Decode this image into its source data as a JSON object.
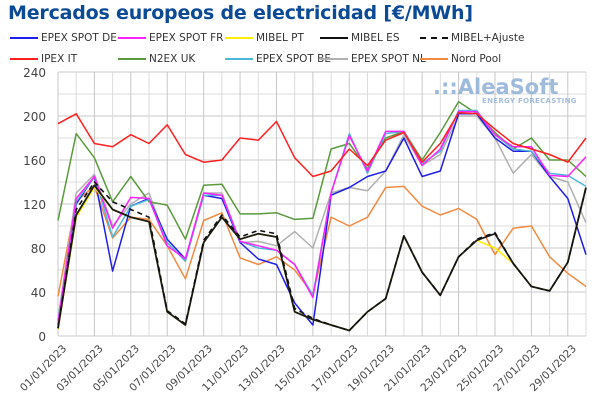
{
  "title": "Mercados europeos de electricidad [€/MWh]",
  "logo": {
    "name": "AleaSoft",
    "tagline": "ENERGY FORECASTING",
    "dots": ".::"
  },
  "chart_data": {
    "type": "line",
    "title": "Mercados europeos de electricidad [€/MWh]",
    "xlabel": "",
    "ylabel": "",
    "ylim": [
      0,
      240
    ],
    "yticks": [
      0,
      40,
      80,
      120,
      160,
      200,
      240
    ],
    "grid": true,
    "legend_position": "top",
    "x": [
      "01/01/2023",
      "02/01/2023",
      "03/01/2023",
      "04/01/2023",
      "05/01/2023",
      "06/01/2023",
      "07/01/2023",
      "08/01/2023",
      "09/01/2023",
      "10/01/2023",
      "11/01/2023",
      "12/01/2023",
      "13/01/2023",
      "14/01/2023",
      "15/01/2023",
      "16/01/2023",
      "17/01/2023",
      "18/01/2023",
      "19/01/2023",
      "20/01/2023",
      "21/01/2023",
      "22/01/2023",
      "23/01/2023",
      "24/01/2023",
      "25/01/2023",
      "26/01/2023",
      "27/01/2023",
      "28/01/2023",
      "29/01/2023",
      "30/01/2023"
    ],
    "xtick_labels": [
      "01/01/2023",
      "03/01/2023",
      "05/01/2023",
      "07/01/2023",
      "09/01/2023",
      "11/01/2023",
      "13/01/2023",
      "15/01/2023",
      "17/01/2023",
      "19/01/2023",
      "21/01/2023",
      "23/01/2023",
      "25/01/2023",
      "27/01/2023",
      "29/01/2023"
    ],
    "series": [
      {
        "name": "EPEX SPOT DE",
        "color": "#1f1fe6",
        "dash": false,
        "values": [
          10,
          120,
          145,
          59,
          118,
          125,
          88,
          70,
          128,
          125,
          85,
          70,
          65,
          30,
          10,
          128,
          135,
          145,
          150,
          180,
          145,
          150,
          202,
          202,
          180,
          168,
          168,
          145,
          125,
          74
        ]
      },
      {
        "name": "EPEX SPOT FR",
        "color": "#ff22ff",
        "dash": false,
        "values": [
          12,
          125,
          145,
          98,
          126,
          125,
          82,
          70,
          130,
          128,
          86,
          82,
          78,
          65,
          35,
          130,
          182,
          150,
          186,
          186,
          155,
          170,
          204,
          204,
          183,
          172,
          172,
          146,
          145,
          163
        ]
      },
      {
        "name": "MIBEL PT",
        "color": "#ffee00",
        "dash": false,
        "values": [
          6,
          108,
          135,
          115,
          108,
          104,
          22,
          10,
          85,
          108,
          88,
          93,
          90,
          22,
          15,
          10,
          5,
          22,
          34,
          91,
          58,
          37,
          72,
          87,
          80,
          66,
          45,
          41,
          67,
          135
        ]
      },
      {
        "name": "MIBEL ES",
        "color": "#111111",
        "dash": false,
        "values": [
          7,
          110,
          137,
          115,
          108,
          104,
          22,
          10,
          85,
          108,
          88,
          93,
          90,
          22,
          15,
          10,
          5,
          22,
          34,
          91,
          58,
          37,
          72,
          87,
          93,
          66,
          45,
          41,
          67,
          135
        ]
      },
      {
        "name": "MIBEL+Ajuste",
        "color": "#111111",
        "dash": true,
        "values": [
          7,
          115,
          140,
          122,
          115,
          108,
          23,
          11,
          87,
          110,
          90,
          96,
          93,
          25,
          16,
          10,
          5,
          22,
          34,
          91,
          58,
          37,
          72,
          88,
          94,
          66,
          45,
          41,
          67,
          135
        ]
      },
      {
        "name": "IPEX IT",
        "color": "#ff2020",
        "dash": false,
        "values": [
          193,
          202,
          175,
          172,
          183,
          175,
          192,
          165,
          158,
          160,
          180,
          178,
          195,
          162,
          145,
          150,
          170,
          155,
          178,
          185,
          158,
          175,
          203,
          202,
          188,
          175,
          170,
          165,
          158,
          180
        ]
      },
      {
        "name": "N2EX UK",
        "color": "#5a9a3c",
        "dash": false,
        "values": [
          105,
          184,
          162,
          122,
          145,
          122,
          119,
          88,
          137,
          138,
          111,
          111,
          112,
          106,
          107,
          170,
          175,
          152,
          180,
          186,
          160,
          185,
          213,
          202,
          185,
          170,
          180,
          160,
          160,
          145
        ]
      },
      {
        "name": "EPEX SPOT BE",
        "color": "#4fb8d8",
        "dash": false,
        "values": [
          14,
          122,
          145,
          90,
          118,
          124,
          85,
          68,
          128,
          128,
          86,
          80,
          78,
          65,
          37,
          130,
          184,
          148,
          184,
          186,
          157,
          168,
          205,
          205,
          183,
          170,
          168,
          148,
          146,
          136
        ]
      },
      {
        "name": "EPEX SPOT NL",
        "color": "#b0b0b0",
        "dash": false,
        "values": [
          15,
          130,
          147,
          100,
          120,
          130,
          85,
          68,
          130,
          130,
          85,
          86,
          82,
          95,
          80,
          130,
          135,
          132,
          150,
          183,
          155,
          165,
          200,
          200,
          180,
          148,
          165,
          145,
          140,
          103
        ]
      },
      {
        "name": "Nord Pool",
        "color": "#f08a40",
        "dash": false,
        "values": [
          36,
          123,
          136,
          89,
          108,
          106,
          82,
          52,
          105,
          112,
          71,
          65,
          72,
          60,
          38,
          108,
          100,
          108,
          135,
          136,
          118,
          110,
          116,
          106,
          74,
          98,
          100,
          72,
          57,
          45
        ]
      }
    ]
  }
}
